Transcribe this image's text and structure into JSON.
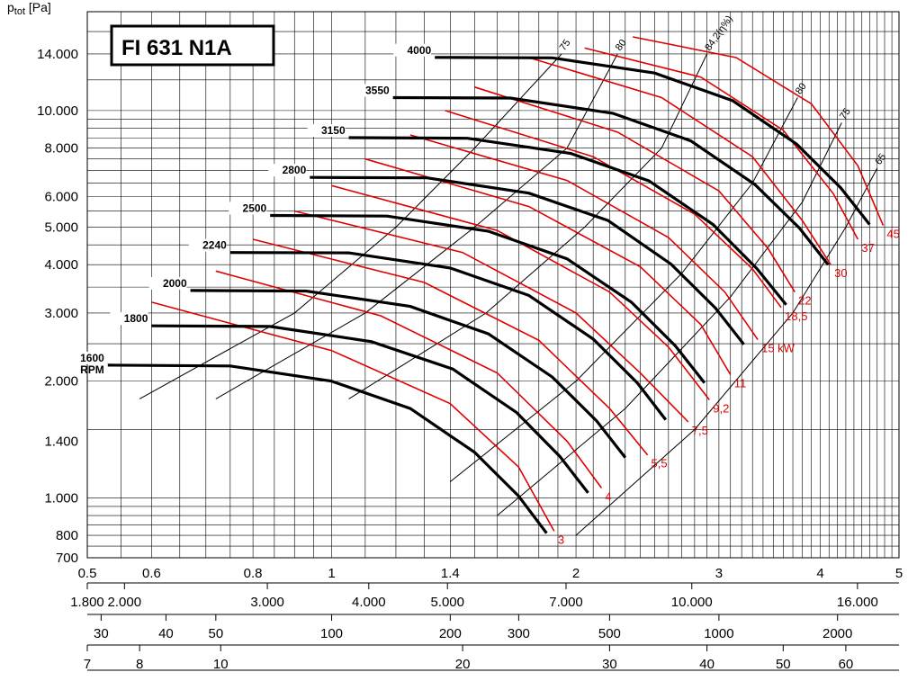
{
  "chart_data": {
    "type": "line",
    "title": "FI 631 N1A",
    "ylabel_main": "p",
    "ylabel_sub": "tot",
    "ylabel_unit": " [Pa]",
    "y_scale": "log",
    "x_scale": "log",
    "ylim": [
      700,
      18000
    ],
    "xlim": [
      0.5,
      5
    ],
    "grid": true,
    "y_ticks": [
      {
        "v": 700,
        "label": "700"
      },
      {
        "v": 800,
        "label": "800"
      },
      {
        "v": 1000,
        "label": "1.000"
      },
      {
        "v": 1400,
        "label": "1.400"
      },
      {
        "v": 2000,
        "label": "2.000"
      },
      {
        "v": 3000,
        "label": "3.000"
      },
      {
        "v": 4000,
        "label": "4.000"
      },
      {
        "v": 5000,
        "label": "5.000"
      },
      {
        "v": 6000,
        "label": "6.000"
      },
      {
        "v": 8000,
        "label": "8.000"
      },
      {
        "v": 10000,
        "label": "10.000"
      },
      {
        "v": 14000,
        "label": "14.000"
      }
    ],
    "x_ticks": [
      {
        "v": 0.5,
        "label": "0.5"
      },
      {
        "v": 0.6,
        "label": "0.6"
      },
      {
        "v": 0.8,
        "label": "0.8"
      },
      {
        "v": 1,
        "label": "1"
      },
      {
        "v": 1.4,
        "label": "1.4"
      },
      {
        "v": 2,
        "label": "2"
      },
      {
        "v": 3,
        "label": "3"
      },
      {
        "v": 4,
        "label": "4"
      },
      {
        "v": 5,
        "label": "5"
      }
    ],
    "secondary_axes": [
      {
        "ticks": [
          {
            "v": 0.5,
            "label": "1.800"
          },
          {
            "v": 0.5556,
            "label": "2.000"
          },
          {
            "v": 0.8333,
            "label": "3.000"
          },
          {
            "v": 1.1111,
            "label": "4.000"
          },
          {
            "v": 1.3889,
            "label": "5.000"
          },
          {
            "v": 1.9444,
            "label": "7.000"
          },
          {
            "v": 2.7778,
            "label": "10.000"
          },
          {
            "v": 4.4444,
            "label": "16.000"
          }
        ]
      },
      {
        "ticks": [
          {
            "v": 0.52,
            "label": "30"
          },
          {
            "v": 0.625,
            "label": "40"
          },
          {
            "v": 0.72,
            "label": "50"
          },
          {
            "v": 1.0,
            "label": "100"
          },
          {
            "v": 1.4,
            "label": "200"
          },
          {
            "v": 1.7,
            "label": "300"
          },
          {
            "v": 2.2,
            "label": "500"
          },
          {
            "v": 3.0,
            "label": "1000"
          },
          {
            "v": 4.2,
            "label": "2000"
          }
        ]
      },
      {
        "ticks": [
          {
            "v": 0.5,
            "label": "7"
          },
          {
            "v": 0.58,
            "label": "8"
          },
          {
            "v": 0.73,
            "label": "10"
          },
          {
            "v": 1.45,
            "label": "20"
          },
          {
            "v": 2.2,
            "label": "30"
          },
          {
            "v": 2.9,
            "label": "40"
          },
          {
            "v": 3.6,
            "label": "50"
          },
          {
            "v": 4.3,
            "label": "60"
          }
        ]
      }
    ],
    "series": [
      {
        "name": "1600",
        "name2": "RPM",
        "points": [
          [
            0.53,
            2200
          ],
          [
            0.75,
            2190
          ],
          [
            1.0,
            2000
          ],
          [
            1.25,
            1700
          ],
          [
            1.5,
            1310
          ],
          [
            1.7,
            1010
          ],
          [
            1.84,
            810
          ]
        ]
      },
      {
        "name": "1800",
        "points": [
          [
            0.6,
            2780
          ],
          [
            0.84,
            2770
          ],
          [
            1.12,
            2530
          ],
          [
            1.41,
            2150
          ],
          [
            1.69,
            1660
          ],
          [
            1.91,
            1280
          ],
          [
            2.07,
            1030
          ]
        ]
      },
      {
        "name": "2000",
        "points": [
          [
            0.67,
            3430
          ],
          [
            0.93,
            3420
          ],
          [
            1.25,
            3120
          ],
          [
            1.56,
            2650
          ],
          [
            1.87,
            2050
          ],
          [
            2.12,
            1580
          ],
          [
            2.3,
            1270
          ]
        ]
      },
      {
        "name": "2240",
        "points": [
          [
            0.75,
            4300
          ],
          [
            1.05,
            4290
          ],
          [
            1.4,
            3920
          ],
          [
            1.75,
            3330
          ],
          [
            2.1,
            2570
          ],
          [
            2.38,
            1980
          ],
          [
            2.58,
            1590
          ]
        ]
      },
      {
        "name": "2500",
        "points": [
          [
            0.84,
            5360
          ],
          [
            1.17,
            5340
          ],
          [
            1.56,
            4880
          ],
          [
            1.95,
            4140
          ],
          [
            2.34,
            3200
          ],
          [
            2.65,
            2470
          ],
          [
            2.88,
            1980
          ]
        ]
      },
      {
        "name": "2800",
        "points": [
          [
            0.94,
            6720
          ],
          [
            1.31,
            6700
          ],
          [
            1.75,
            6120
          ],
          [
            2.19,
            5200
          ],
          [
            2.62,
            4010
          ],
          [
            2.97,
            3090
          ],
          [
            3.22,
            2490
          ]
        ]
      },
      {
        "name": "3150",
        "points": [
          [
            1.05,
            8510
          ],
          [
            1.47,
            8480
          ],
          [
            1.97,
            7750
          ],
          [
            2.46,
            6580
          ],
          [
            2.95,
            5080
          ],
          [
            3.34,
            3910
          ],
          [
            3.63,
            3150
          ]
        ]
      },
      {
        "name": "3550",
        "points": [
          [
            1.19,
            10800
          ],
          [
            1.66,
            10770
          ],
          [
            2.22,
            9840
          ],
          [
            2.77,
            8350
          ],
          [
            3.32,
            6450
          ],
          [
            3.77,
            4970
          ],
          [
            4.09,
            4000
          ]
        ]
      },
      {
        "name": "4000",
        "points": [
          [
            1.34,
            13720
          ],
          [
            1.87,
            13680
          ],
          [
            2.5,
            12500
          ],
          [
            3.12,
            10600
          ],
          [
            3.74,
            8190
          ],
          [
            4.24,
            6310
          ],
          [
            4.6,
            5080
          ]
        ]
      }
    ],
    "power_curves": [
      {
        "label": "3",
        "points": [
          [
            0.6,
            3200
          ],
          [
            1.0,
            2400
          ],
          [
            1.4,
            1750
          ],
          [
            1.7,
            1200
          ],
          [
            1.88,
            820
          ]
        ]
      },
      {
        "label": "4",
        "points": [
          [
            0.72,
            3850
          ],
          [
            1.15,
            2950
          ],
          [
            1.6,
            2100
          ],
          [
            1.95,
            1400
          ],
          [
            2.15,
            1060
          ]
        ]
      },
      {
        "label": "5,5",
        "points": [
          [
            0.8,
            4650
          ],
          [
            1.3,
            3600
          ],
          [
            1.8,
            2550
          ],
          [
            2.2,
            1700
          ],
          [
            2.45,
            1290
          ]
        ]
      },
      {
        "label": "7,5",
        "points": [
          [
            0.9,
            5500
          ],
          [
            1.45,
            4300
          ],
          [
            2.0,
            3000
          ],
          [
            2.4,
            2100
          ],
          [
            2.75,
            1570
          ]
        ]
      },
      {
        "label": "9,2",
        "points": [
          [
            1.0,
            6400
          ],
          [
            1.6,
            4900
          ],
          [
            2.2,
            3400
          ],
          [
            2.6,
            2450
          ],
          [
            2.92,
            1790
          ]
        ]
      },
      {
        "label": "11",
        "points": [
          [
            1.1,
            7500
          ],
          [
            1.75,
            5650
          ],
          [
            2.4,
            3950
          ],
          [
            2.85,
            2800
          ],
          [
            3.1,
            2080
          ]
        ]
      },
      {
        "label": "15 kW",
        "points": [
          [
            1.25,
            8650
          ],
          [
            1.95,
            6600
          ],
          [
            2.6,
            4700
          ],
          [
            3.05,
            3400
          ],
          [
            3.35,
            2560
          ]
        ]
      },
      {
        "label": "18,5",
        "points": [
          [
            1.38,
            10000
          ],
          [
            2.1,
            7600
          ],
          [
            2.8,
            5400
          ],
          [
            3.3,
            3900
          ],
          [
            3.58,
            3100
          ]
        ]
      },
      {
        "label": "22",
        "points": [
          [
            1.5,
            11500
          ],
          [
            2.25,
            8800
          ],
          [
            3.0,
            6200
          ],
          [
            3.45,
            4400
          ],
          [
            3.72,
            3400
          ]
        ]
      },
      {
        "label": "30",
        "points": [
          [
            1.75,
            13700
          ],
          [
            2.55,
            10800
          ],
          [
            3.3,
            7600
          ],
          [
            3.8,
            5200
          ],
          [
            4.12,
            4000
          ]
        ]
      },
      {
        "label": "37",
        "points": [
          [
            2.05,
            14500
          ],
          [
            2.85,
            12200
          ],
          [
            3.6,
            8900
          ],
          [
            4.15,
            6100
          ],
          [
            4.45,
            4650
          ]
        ]
      },
      {
        "label": "45",
        "points": [
          [
            2.35,
            15500
          ],
          [
            3.15,
            13700
          ],
          [
            3.9,
            10400
          ],
          [
            4.45,
            7200
          ],
          [
            4.78,
            5050
          ]
        ]
      }
    ],
    "efficiency_lines": [
      {
        "label": "75",
        "points": [
          [
            0.58,
            1800
          ],
          [
            0.9,
            3000
          ],
          [
            1.2,
            5000
          ],
          [
            1.5,
            8000
          ],
          [
            1.92,
            14000
          ]
        ]
      },
      {
        "label": "80",
        "points": [
          [
            0.72,
            1800
          ],
          [
            1.1,
            3000
          ],
          [
            1.5,
            5000
          ],
          [
            1.95,
            8000
          ],
          [
            2.25,
            14000
          ]
        ]
      },
      {
        "label": "84,2(η%)",
        "points": [
          [
            1.05,
            1800
          ],
          [
            1.55,
            3000
          ],
          [
            2.05,
            5000
          ],
          [
            2.55,
            8000
          ],
          [
            2.9,
            14000
          ]
        ]
      },
      {
        "label": "80",
        "points": [
          [
            1.4,
            1100
          ],
          [
            2.0,
            2000
          ],
          [
            2.7,
            3800
          ],
          [
            3.3,
            6500
          ],
          [
            3.75,
            10800
          ]
        ]
      },
      {
        "label": "75",
        "points": [
          [
            1.6,
            900
          ],
          [
            2.3,
            1700
          ],
          [
            3.1,
            3300
          ],
          [
            3.8,
            5800
          ],
          [
            4.25,
            9300
          ]
        ]
      },
      {
        "label": "65",
        "points": [
          [
            2.0,
            800
          ],
          [
            2.8,
            1500
          ],
          [
            3.7,
            3000
          ],
          [
            4.3,
            5000
          ],
          [
            4.7,
            7100
          ]
        ]
      }
    ]
  }
}
